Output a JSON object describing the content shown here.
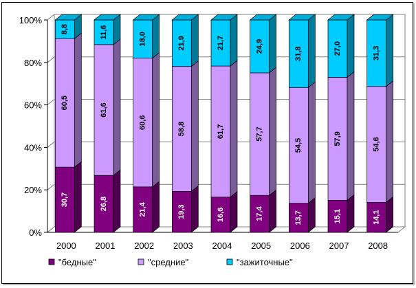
{
  "chart_data": {
    "type": "bar",
    "stacked": "percent",
    "style": "3d-stacked-column",
    "categories": [
      "2000",
      "2001",
      "2002",
      "2003",
      "2004",
      "2005",
      "2006",
      "2007",
      "2008"
    ],
    "series": [
      {
        "name": "\"бедные\"",
        "values": [
          30.7,
          26.8,
          21.4,
          19.3,
          16.6,
          17.4,
          13.7,
          15.1,
          14.1
        ],
        "color": "#800080",
        "label_color": "#ffffff"
      },
      {
        "name": "\"средние\"",
        "values": [
          60.5,
          61.6,
          60.6,
          58.8,
          61.7,
          57.7,
          54.5,
          57.9,
          54.6
        ],
        "color": "#cc99ff",
        "label_color": "#000000"
      },
      {
        "name": "\"зажиточные\"",
        "values": [
          8.8,
          11.6,
          18.0,
          21.9,
          21.7,
          24.9,
          31.8,
          27.0,
          31.3
        ],
        "color": "#00ccff",
        "label_color": "#000000"
      }
    ],
    "data_labels": {
      "2000": [
        "30,7",
        "60,5",
        "8,8"
      ],
      "2001": [
        "26,8",
        "61,6",
        "11,6"
      ],
      "2002": [
        "21,4",
        "60,6",
        "18,0"
      ],
      "2003": [
        "19,3",
        "58,8",
        "21,9"
      ],
      "2004": [
        "16,6",
        "61,7",
        "21,7"
      ],
      "2005": [
        "17,4",
        "57,7",
        "24,9"
      ],
      "2006": [
        "13,7",
        "54,5",
        "31,8"
      ],
      "2007": [
        "15,1",
        "57,9",
        "27,0"
      ],
      "2008": [
        "14,1",
        "54,6",
        "31,3"
      ]
    },
    "y_ticks": [
      "0%",
      "20%",
      "40%",
      "60%",
      "80%",
      "100%"
    ],
    "ylim": [
      0,
      100
    ],
    "grid": true,
    "legend_position": "bottom",
    "title": "",
    "xlabel": "",
    "ylabel": ""
  }
}
